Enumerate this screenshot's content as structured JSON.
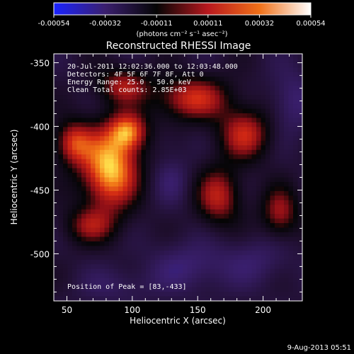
{
  "chart_data": {
    "type": "heatmap",
    "title": "Reconstructed RHESSI Image",
    "xlabel": "Heliocentric X (arcsec)",
    "ylabel": "Heliocentric Y (arcsec)",
    "xlim": [
      40,
      230
    ],
    "ylim": [
      -537,
      -343
    ],
    "x_ticks": [
      "50",
      "100",
      "150",
      "200"
    ],
    "x_tick_values": [
      50,
      100,
      150,
      200
    ],
    "y_ticks": [
      "-350",
      "-400",
      "-450",
      "-500"
    ],
    "y_tick_values": [
      -350,
      -400,
      -450,
      -500
    ],
    "colorbar": {
      "range": [
        -0.00054,
        0.00054
      ],
      "tick_labels": [
        "-0.00054",
        "-0.00032",
        "-0.00011",
        "0.00011",
        "0.00032",
        "0.00054"
      ],
      "units": "(photons cm⁻² s⁻¹ asec⁻²)",
      "colors": [
        "#1a23ff",
        "#3a1f6e",
        "#050505",
        "#b8181e",
        "#f07018",
        "#ffffff"
      ]
    },
    "annotations": [
      "20-Jul-2011 12:02:36.000 to 12:03:48.000",
      "Detectors: 4F 5F 6F 7F 8F, Att 0",
      "Energy Range: 25.0 - 50.0 keV",
      "Clean    Total counts: 2.85E+03"
    ],
    "peak_label": "Position of Peak = [83,-433]",
    "peak": {
      "x": 83,
      "y": -433
    },
    "sources": [
      {
        "x": 83,
        "y": -433,
        "flux": 0.00054,
        "sx": 15,
        "sy": 22
      },
      {
        "x": 97,
        "y": -404,
        "flux": 0.00036,
        "sx": 10,
        "sy": 10
      },
      {
        "x": 55,
        "y": -413,
        "flux": 0.0003,
        "sx": 10,
        "sy": 12
      },
      {
        "x": 93,
        "y": -368,
        "flux": 0.00022,
        "sx": 14,
        "sy": 10
      },
      {
        "x": 146,
        "y": -378,
        "flux": 0.0003,
        "sx": 20,
        "sy": 12
      },
      {
        "x": 186,
        "y": -406,
        "flux": 0.00028,
        "sx": 14,
        "sy": 14
      },
      {
        "x": 166,
        "y": -455,
        "flux": 0.00026,
        "sx": 12,
        "sy": 16
      },
      {
        "x": 213,
        "y": -468,
        "flux": 0.00022,
        "sx": 10,
        "sy": 14
      },
      {
        "x": 68,
        "y": -478,
        "flux": 0.00018,
        "sx": 14,
        "sy": 10
      },
      {
        "x": 130,
        "y": -442,
        "flux": -0.00022,
        "sx": 10,
        "sy": 14
      },
      {
        "x": 222,
        "y": -380,
        "flux": -0.00026,
        "sx": 12,
        "sy": 18
      },
      {
        "x": 197,
        "y": -505,
        "flux": -0.00022,
        "sx": 18,
        "sy": 14
      },
      {
        "x": 145,
        "y": -510,
        "flux": -0.00026,
        "sx": 22,
        "sy": 14
      },
      {
        "x": 88,
        "y": -525,
        "flux": -0.0002,
        "sx": 20,
        "sy": 10
      },
      {
        "x": 125,
        "y": -412,
        "flux": -0.00014,
        "sx": 8,
        "sy": 8
      }
    ]
  },
  "footer": {
    "date": "9-Aug-2013 05:51"
  }
}
